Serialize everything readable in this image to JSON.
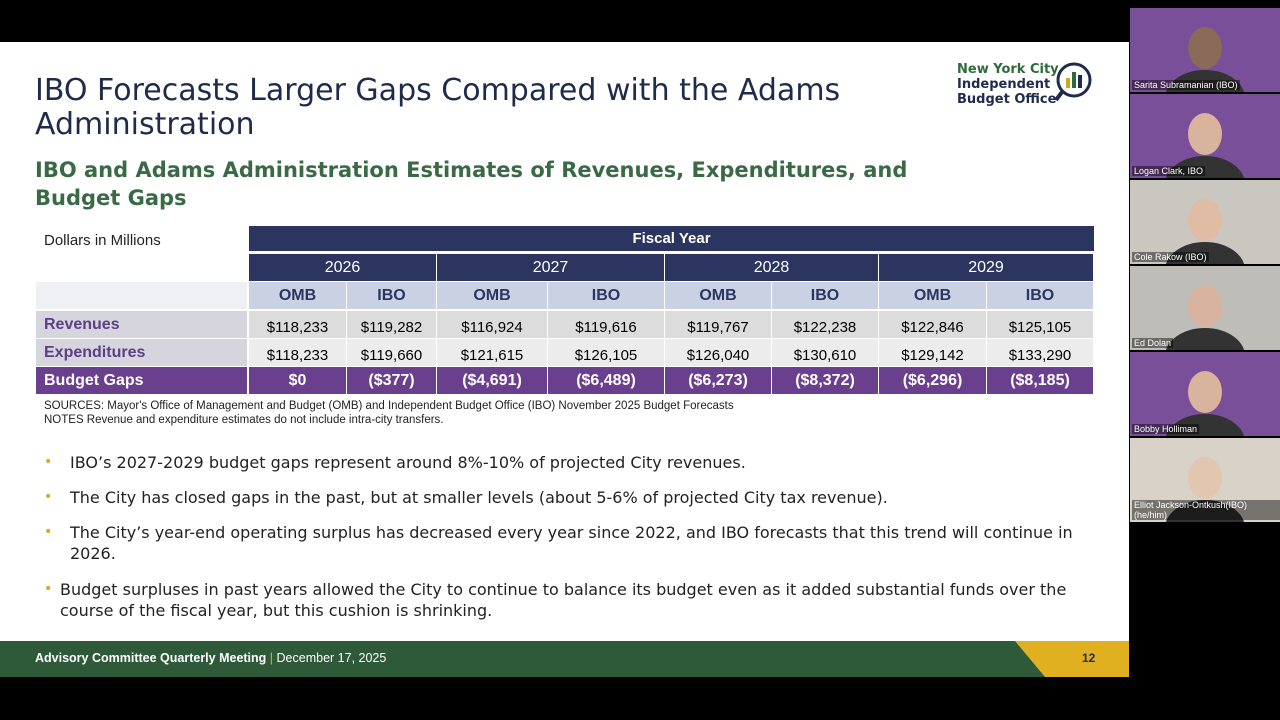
{
  "slide": {
    "title": "IBO Forecasts Larger Gaps Compared with the Adams Administration",
    "logo": [
      "New York City",
      "Independent",
      "Budget Office"
    ],
    "subtitle": "IBO and Adams Administration Estimates of Revenues, Expenditures, and Budget Gaps",
    "table": {
      "unit_label": "Dollars in Millions",
      "group_header": "Fiscal Year",
      "years": [
        "2026",
        "2027",
        "2028",
        "2029"
      ],
      "sources": [
        "OMB",
        "IBO",
        "OMB",
        "IBO",
        "OMB",
        "IBO",
        "OMB",
        "IBO"
      ],
      "rows": [
        {
          "label": "Revenues",
          "values": [
            "$118,233",
            "$119,282",
            "$116,924",
            "$119,616",
            "$119,767",
            "$122,238",
            "$122,846",
            "$125,105"
          ]
        },
        {
          "label": "Expenditures",
          "values": [
            "$118,233",
            "$119,660",
            "$121,615",
            "$126,105",
            "$126,040",
            "$130,610",
            "$129,142",
            "$133,290"
          ]
        },
        {
          "label": "Budget Gaps",
          "values": [
            "$0",
            "($377)",
            "($4,691)",
            "($6,489)",
            "($6,273)",
            "($8,372)",
            "($6,296)",
            "($8,185)"
          ]
        }
      ],
      "sources_note": "SOURCES: Mayor's Office of Management and Budget (OMB) and Independent Budget Office (IBO) November 2025 Budget Forecasts",
      "notes": "NOTES Revenue and expenditure estimates do not include intra-city transfers."
    },
    "bullets": [
      "IBO’s 2027-2029 budget gaps represent around 8%-10% of projected City revenues.",
      "The City has closed gaps in the past, but at smaller levels (about 5-6% of projected City tax revenue).",
      "The City’s year-end operating surplus has decreased every year since 2022, and IBO forecasts that this trend will continue in 2026.",
      "Budget surpluses in past years allowed the City to continue to balance its budget even as it added substantial funds over the course of the fiscal year, but this cushion is shrinking."
    ],
    "footer": {
      "meeting": "Advisory Committee Quarterly Meeting",
      "separator": "|",
      "date": "December 17, 2025",
      "page": "12"
    }
  },
  "participants": [
    "Sarita Subramanian (IBO)",
    "Logan Clark, IBO",
    "Cole Rakow (IBO)",
    "Ed Dolan",
    "Bobby Holliman",
    "Elliot Jackson-Ontkush(IBO)(he/him)"
  ]
}
